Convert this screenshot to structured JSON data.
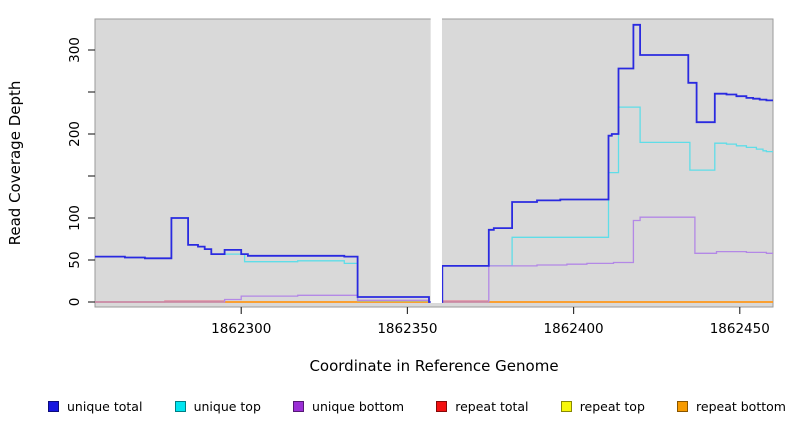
{
  "chart_data": {
    "type": "line",
    "step": true,
    "title": "",
    "xlabel": "Coordinate in Reference Genome",
    "ylabel": "Read Coverage Depth",
    "xlim": [
      1862256,
      1862460
    ],
    "ylim": [
      0,
      337
    ],
    "x_ticks": [
      1862300,
      1862350,
      1862400,
      1862450
    ],
    "y_ticks_labeled": [
      0,
      50,
      100,
      200,
      300
    ],
    "y_ticks_minor": [
      150,
      250
    ],
    "plot_bg_color": "#d9d9d9",
    "plot_border_color": "#9a9a9a",
    "no_data_gap": {
      "x1": 1862357.0,
      "x2": 1862360.4
    },
    "draw_order": [
      "repeat total",
      "repeat top",
      "repeat bottom",
      "unique top",
      "unique bottom",
      "unique total"
    ],
    "series": [
      {
        "name": "unique total",
        "color": "#2a2ae0",
        "width": 1.8,
        "points": [
          [
            1862256,
            54
          ],
          [
            1862265,
            53
          ],
          [
            1862271,
            52
          ],
          [
            1862279,
            100
          ],
          [
            1862284,
            68
          ],
          [
            1862287,
            66
          ],
          [
            1862289,
            63
          ],
          [
            1862291,
            57
          ],
          [
            1862295,
            62
          ],
          [
            1862300,
            57
          ],
          [
            1862302,
            55
          ],
          [
            1862331,
            54
          ],
          [
            1862335,
            6
          ],
          [
            1862356.5,
            0
          ],
          [
            1862360.5,
            43
          ],
          [
            1862374.5,
            86
          ],
          [
            1862376,
            88
          ],
          [
            1862381.5,
            119
          ],
          [
            1862389,
            121
          ],
          [
            1862396,
            122
          ],
          [
            1862410.5,
            198
          ],
          [
            1862411.5,
            200
          ],
          [
            1862413.5,
            278
          ],
          [
            1862418,
            330
          ],
          [
            1862420,
            294
          ],
          [
            1862434.5,
            261
          ],
          [
            1862437,
            214
          ],
          [
            1862442.5,
            248
          ],
          [
            1862446,
            247
          ],
          [
            1862449,
            245
          ],
          [
            1862452,
            243
          ],
          [
            1862454,
            242
          ],
          [
            1862456,
            241
          ],
          [
            1862458,
            240
          ]
        ]
      },
      {
        "name": "unique top",
        "color": "#5fdde8",
        "width": 1.3,
        "points": [
          [
            1862256,
            54
          ],
          [
            1862265,
            53
          ],
          [
            1862271,
            52
          ],
          [
            1862279,
            100
          ],
          [
            1862284,
            68
          ],
          [
            1862287,
            66
          ],
          [
            1862289,
            63
          ],
          [
            1862291,
            57
          ],
          [
            1862301,
            48
          ],
          [
            1862317,
            49
          ],
          [
            1862331,
            46
          ],
          [
            1862335,
            1.5
          ],
          [
            1862356.5,
            0
          ],
          [
            1862360.5,
            43
          ],
          [
            1862381.5,
            77
          ],
          [
            1862410.5,
            154
          ],
          [
            1862413.5,
            232
          ],
          [
            1862420,
            190
          ],
          [
            1862435,
            157
          ],
          [
            1862442.5,
            189
          ],
          [
            1862446,
            188
          ],
          [
            1862449,
            186
          ],
          [
            1862452,
            184
          ],
          [
            1862455,
            182
          ],
          [
            1862457,
            180
          ],
          [
            1862458,
            179
          ]
        ]
      },
      {
        "name": "unique bottom",
        "color": "#b388e6",
        "width": 1.3,
        "points": [
          [
            1862256,
            0
          ],
          [
            1862295,
            3
          ],
          [
            1862300,
            7
          ],
          [
            1862317,
            8
          ],
          [
            1862335,
            2
          ],
          [
            1862356.5,
            0
          ],
          [
            1862374.5,
            43
          ],
          [
            1862389,
            44
          ],
          [
            1862398,
            45
          ],
          [
            1862404,
            46
          ],
          [
            1862412,
            47
          ],
          [
            1862418,
            97
          ],
          [
            1862420,
            101
          ],
          [
            1862436.5,
            58
          ],
          [
            1862443,
            60
          ],
          [
            1862452,
            59
          ],
          [
            1862458,
            58
          ]
        ]
      },
      {
        "name": "repeat total",
        "color": "#e8476b",
        "width": 1.2,
        "points": [
          [
            1862256,
            0
          ],
          [
            1862277,
            1
          ],
          [
            1862295,
            0
          ],
          [
            1862360.5,
            1
          ],
          [
            1862374.5,
            0
          ]
        ]
      },
      {
        "name": "repeat top",
        "color": "#f2f20a",
        "width": 1.0,
        "points": [
          [
            1862256,
            0
          ]
        ]
      },
      {
        "name": "repeat bottom",
        "color": "#ff9d1e",
        "width": 1.8,
        "points": [
          [
            1862256,
            0
          ]
        ]
      }
    ]
  },
  "legend": {
    "items": [
      {
        "label": "unique total",
        "color": "#1616e0"
      },
      {
        "label": "unique top",
        "color": "#00e5f0"
      },
      {
        "label": "unique bottom",
        "color": "#9b2fd6"
      },
      {
        "label": "repeat total",
        "color": "#f31111"
      },
      {
        "label": "repeat top",
        "color": "#f7f70a"
      },
      {
        "label": "repeat bottom",
        "color": "#f79b00"
      }
    ]
  }
}
